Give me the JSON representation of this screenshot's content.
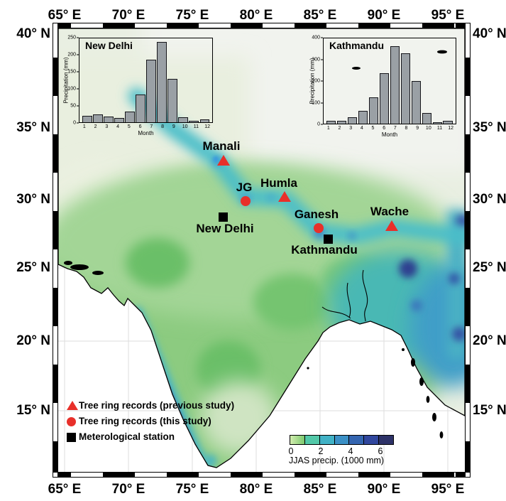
{
  "axes": {
    "top": [
      "65° E",
      "70° E",
      "75° E",
      "80° E",
      "85° E",
      "90° E",
      "95° E"
    ],
    "bottom": [
      "65° E",
      "70° E",
      "75° E",
      "80° E",
      "85° E",
      "90° E",
      "95° E"
    ],
    "left": [
      "40° N",
      "35° N",
      "30° N",
      "25° N",
      "20° N",
      "15° N"
    ],
    "right": [
      "40° N",
      "35° N",
      "30° N",
      "25° N",
      "20° N",
      "15° N"
    ]
  },
  "markers": [
    {
      "name": "Manali",
      "type": "triangle",
      "color": "#e8302a"
    },
    {
      "name": "JG",
      "type": "circle",
      "color": "#e8302a"
    },
    {
      "name": "Humla",
      "type": "triangle",
      "color": "#e8302a"
    },
    {
      "name": "Ganesh",
      "type": "circle",
      "color": "#e8302a"
    },
    {
      "name": "Wache",
      "type": "triangle",
      "color": "#e8302a"
    },
    {
      "name": "New Delhi",
      "type": "square",
      "color": "#000000"
    },
    {
      "name": "Kathmandu",
      "type": "square",
      "color": "#000000"
    }
  ],
  "legend": {
    "items": [
      {
        "icon": "triangle-icon",
        "color": "#e8302a",
        "label": "Tree ring records (previous study)"
      },
      {
        "icon": "circle-icon",
        "color": "#e8302a",
        "label": "Tree ring records (this study)"
      },
      {
        "icon": "square-icon",
        "color": "#000000",
        "label": "Meterological station"
      }
    ]
  },
  "colorbar": {
    "title": "JJAS precip. (1000 mm)",
    "tick_labels": [
      "0",
      "2",
      "4",
      "6"
    ],
    "left_fade": "#d2ecae",
    "colors": [
      "#7cc96e",
      "#52c8a8",
      "#41b2c6",
      "#3b90c6",
      "#3465b0",
      "#31479e",
      "#2d3268"
    ]
  },
  "chart_data": [
    {
      "type": "bar",
      "title": "New Delhi",
      "xlabel": "Month",
      "ylabel": "Precipitation (mm)",
      "categories": [
        "1",
        "2",
        "3",
        "4",
        "5",
        "6",
        "7",
        "8",
        "9",
        "10",
        "11",
        "12"
      ],
      "values": [
        20,
        23,
        16,
        13,
        32,
        83,
        187,
        240,
        130,
        14,
        4,
        9
      ],
      "ylim": [
        0,
        250
      ],
      "yticks": [
        0,
        50,
        100,
        150,
        200,
        250
      ]
    },
    {
      "type": "bar",
      "title": "Kathmandu",
      "xlabel": "Month",
      "ylabel": "Precipitation (mm)",
      "categories": [
        "1",
        "2",
        "3",
        "4",
        "5",
        "6",
        "7",
        "8",
        "9",
        "10",
        "11",
        "12"
      ],
      "values": [
        12,
        15,
        30,
        60,
        123,
        237,
        363,
        330,
        200,
        50,
        7,
        13
      ],
      "ylim": [
        0,
        400
      ],
      "yticks": [
        0,
        100,
        200,
        300,
        400
      ]
    }
  ]
}
